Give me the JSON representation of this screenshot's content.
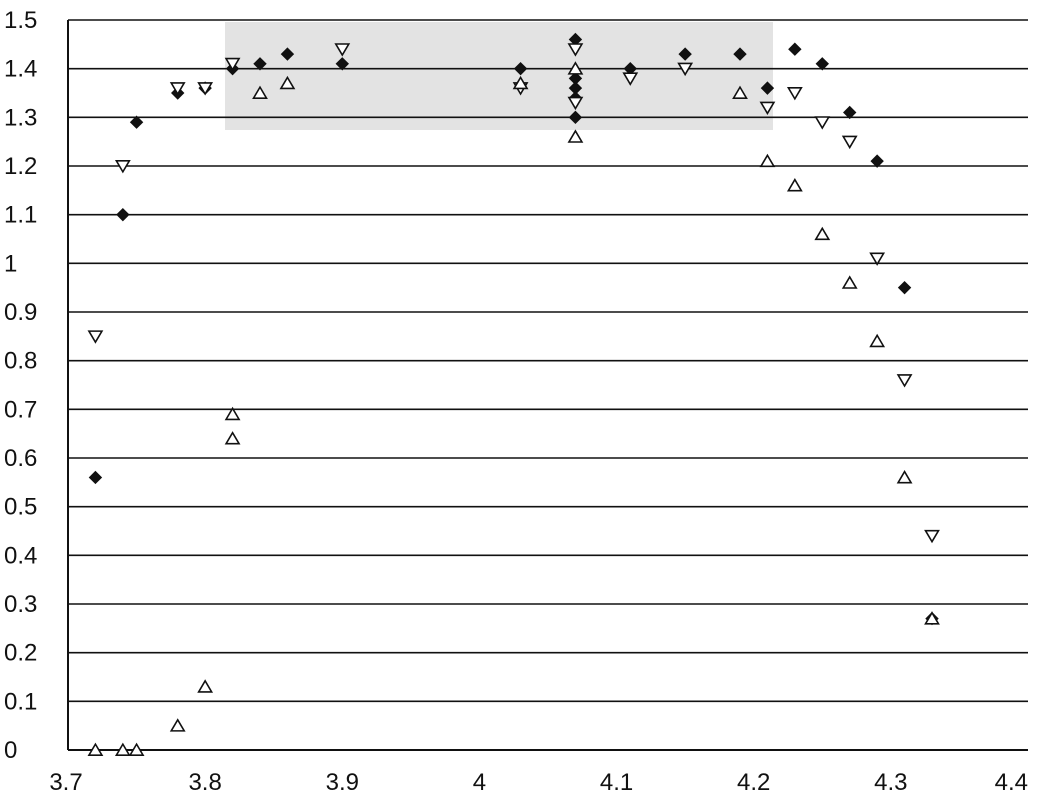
{
  "chart_data": {
    "type": "scatter",
    "title": "",
    "xlabel": "",
    "ylabel": "",
    "xlim": [
      3.7,
      4.4
    ],
    "ylim": [
      0,
      1.5
    ],
    "grid": "horizontal",
    "x_ticks": [
      "3.7",
      "3.8",
      "3.9",
      "4",
      "4.1",
      "4.2",
      "4.3",
      "4.4"
    ],
    "y_ticks": [
      "0",
      "0.1",
      "0.2",
      "0.3",
      "0.4",
      "0.5",
      "0.6",
      "0.7",
      "0.8",
      "0.9",
      "1",
      "1.1",
      "1.2",
      "1.3",
      "1.4",
      "1.5"
    ],
    "series": [
      {
        "marker": "filled-diamond",
        "points": [
          [
            3.72,
            0.56
          ],
          [
            3.74,
            1.1
          ],
          [
            3.75,
            1.29
          ],
          [
            3.78,
            1.35
          ],
          [
            3.8,
            1.36
          ],
          [
            3.82,
            1.4
          ],
          [
            3.84,
            1.41
          ],
          [
            3.86,
            1.43
          ],
          [
            3.9,
            1.41
          ],
          [
            4.03,
            1.4
          ],
          [
            4.07,
            1.46
          ],
          [
            4.07,
            1.38
          ],
          [
            4.07,
            1.36
          ],
          [
            4.07,
            1.34
          ],
          [
            4.07,
            1.3
          ],
          [
            4.11,
            1.4
          ],
          [
            4.15,
            1.43
          ],
          [
            4.19,
            1.43
          ],
          [
            4.21,
            1.36
          ],
          [
            4.23,
            1.44
          ],
          [
            4.25,
            1.41
          ],
          [
            4.27,
            1.31
          ],
          [
            4.29,
            1.21
          ],
          [
            4.31,
            0.95
          ],
          [
            4.33,
            0.27
          ]
        ]
      },
      {
        "marker": "open-triangle-down",
        "points": [
          [
            3.72,
            0.85
          ],
          [
            3.74,
            1.2
          ],
          [
            3.78,
            1.36
          ],
          [
            3.8,
            1.36
          ],
          [
            3.82,
            1.41
          ],
          [
            3.9,
            1.44
          ],
          [
            4.03,
            1.36
          ],
          [
            4.07,
            1.44
          ],
          [
            4.07,
            1.33
          ],
          [
            4.11,
            1.38
          ],
          [
            4.15,
            1.4
          ],
          [
            4.21,
            1.32
          ],
          [
            4.23,
            1.35
          ],
          [
            4.25,
            1.29
          ],
          [
            4.27,
            1.25
          ],
          [
            4.29,
            1.01
          ],
          [
            4.31,
            0.76
          ],
          [
            4.33,
            0.44
          ]
        ]
      },
      {
        "marker": "open-triangle-up",
        "points": [
          [
            3.72,
            0.0
          ],
          [
            3.74,
            0.0
          ],
          [
            3.75,
            0.0
          ],
          [
            3.78,
            0.05
          ],
          [
            3.8,
            0.13
          ],
          [
            3.82,
            0.69
          ],
          [
            3.82,
            0.64
          ],
          [
            3.84,
            1.35
          ],
          [
            3.86,
            1.37
          ],
          [
            4.03,
            1.37
          ],
          [
            4.07,
            1.26
          ],
          [
            4.07,
            1.4
          ],
          [
            4.19,
            1.35
          ],
          [
            4.21,
            1.21
          ],
          [
            4.23,
            1.16
          ],
          [
            4.25,
            1.06
          ],
          [
            4.27,
            0.96
          ],
          [
            4.29,
            0.84
          ],
          [
            4.31,
            0.56
          ],
          [
            4.33,
            0.27
          ]
        ]
      }
    ]
  }
}
